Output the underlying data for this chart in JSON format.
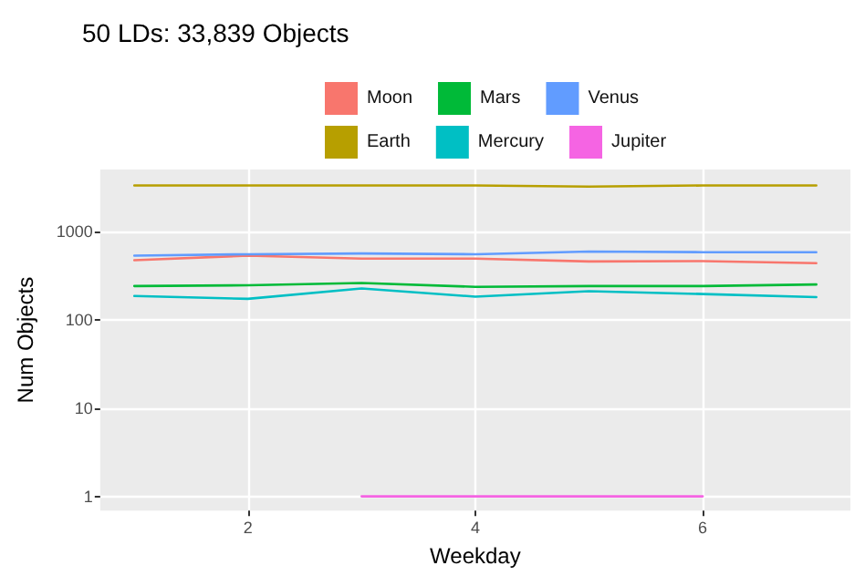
{
  "chart_data": {
    "type": "line",
    "title": "50 LDs: 33,839 Objects",
    "xlabel": "Weekday",
    "ylabel": "Num Objects",
    "x": [
      1,
      2,
      3,
      4,
      5,
      6,
      7
    ],
    "series": [
      {
        "name": "Moon",
        "color": "#f8766d",
        "values": [
          470,
          530,
          490,
          490,
          455,
          460,
          435
        ]
      },
      {
        "name": "Earth",
        "color": "#b79f00",
        "values": [
          3300,
          3300,
          3300,
          3300,
          3200,
          3300,
          3300
        ]
      },
      {
        "name": "Mars",
        "color": "#00ba38",
        "values": [
          240,
          245,
          260,
          235,
          240,
          240,
          250
        ]
      },
      {
        "name": "Mercury",
        "color": "#00bfc4",
        "values": [
          185,
          172,
          225,
          182,
          210,
          195,
          180
        ]
      },
      {
        "name": "Venus",
        "color": "#619cff",
        "values": [
          530,
          550,
          560,
          550,
          590,
          580,
          580
        ]
      },
      {
        "name": "Jupiter",
        "color": "#f564e3",
        "values": [
          null,
          null,
          1,
          1,
          1,
          1,
          null
        ]
      }
    ],
    "log": "y",
    "xlim": [
      0.7,
      7.3
    ],
    "xticks": [
      2,
      4,
      6
    ],
    "ylim": [
      0.69,
      5000
    ],
    "yticks": [
      1,
      10,
      100,
      1000
    ],
    "grid": true,
    "legend": "top",
    "marker": "none",
    "line_style": "solid"
  }
}
